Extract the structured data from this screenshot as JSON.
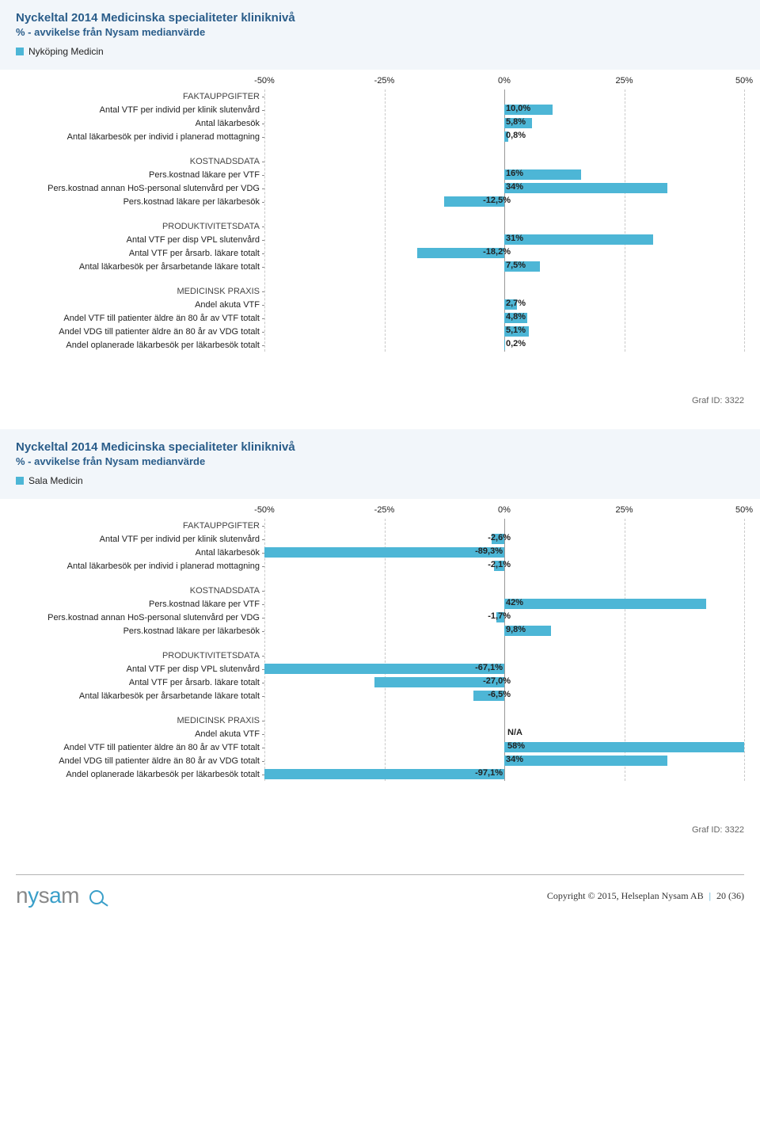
{
  "bar_color": "#4db6d6",
  "grid_color": "#c9c9c9",
  "zero_line_color": "#777777",
  "panel_bg": "#f2f6fa",
  "xlim": [
    -50,
    50
  ],
  "xticks": [
    -50,
    -25,
    0,
    25,
    50
  ],
  "xtick_labels": [
    "-50%",
    "-25%",
    "0%",
    "25%",
    "50%"
  ],
  "charts": [
    {
      "title": "Nyckeltal 2014 Medicinska specialiteter kliniknivå",
      "subtitle": "% - avvikelse från Nysam medianvärde",
      "legend": "Nyköping Medicin",
      "graf_id": "Graf ID: 3322",
      "sections": [
        {
          "header": "FAKTAUPPGIFTER",
          "rows": [
            {
              "label": "Antal VTF per individ per klinik slutenvård",
              "value": 10.0,
              "display": "10,0%"
            },
            {
              "label": "Antal läkarbesök",
              "value": 5.8,
              "display": "5,8%"
            },
            {
              "label": "Antal läkarbesök per individ i planerad mottagning",
              "value": 0.8,
              "display": "0,8%"
            }
          ]
        },
        {
          "header": "KOSTNADSDATA",
          "rows": [
            {
              "label": "Pers.kostnad läkare per VTF",
              "value": 16,
              "display": "16%"
            },
            {
              "label": "Pers.kostnad annan HoS-personal slutenvård per VDG",
              "value": 34,
              "display": "34%"
            },
            {
              "label": "Pers.kostnad läkare per läkarbesök",
              "value": -12.5,
              "display": "-12,5%"
            }
          ]
        },
        {
          "header": "PRODUKTIVITETSDATA",
          "rows": [
            {
              "label": "Antal VTF per disp VPL slutenvård",
              "value": 31,
              "display": "31%"
            },
            {
              "label": "Antal VTF per årsarb. läkare totalt",
              "value": -18.2,
              "display": "-18,2%"
            },
            {
              "label": "Antal läkarbesök per årsarbetande läkare totalt",
              "value": 7.5,
              "display": "7,5%"
            }
          ]
        },
        {
          "header": "MEDICINSK PRAXIS",
          "rows": [
            {
              "label": "Andel akuta VTF",
              "value": 2.7,
              "display": "2,7%"
            },
            {
              "label": "Andel VTF till patienter äldre än 80 år av VTF totalt",
              "value": 4.8,
              "display": "4,8%"
            },
            {
              "label": "Andel VDG till patienter äldre än 80 år av VDG totalt",
              "value": 5.1,
              "display": "5,1%"
            },
            {
              "label": "Andel oplanerade läkarbesök per läkarbesök totalt",
              "value": 0.2,
              "display": "0,2%"
            }
          ]
        }
      ]
    },
    {
      "title": "Nyckeltal 2014 Medicinska specialiteter kliniknivå",
      "subtitle": "% - avvikelse från Nysam medianvärde",
      "legend": "Sala Medicin",
      "graf_id": "Graf ID: 3322",
      "sections": [
        {
          "header": "FAKTAUPPGIFTER",
          "rows": [
            {
              "label": "Antal VTF per individ per klinik slutenvård",
              "value": -2.6,
              "display": "-2,6%"
            },
            {
              "label": "Antal läkarbesök",
              "value": -89.3,
              "display": "-89,3%",
              "clip_neg": true
            },
            {
              "label": "Antal läkarbesök per individ i planerad mottagning",
              "value": -2.1,
              "display": "-2,1%"
            }
          ]
        },
        {
          "header": "KOSTNADSDATA",
          "rows": [
            {
              "label": "Pers.kostnad läkare per VTF",
              "value": 42,
              "display": "42%"
            },
            {
              "label": "Pers.kostnad annan HoS-personal slutenvård per VDG",
              "value": -1.7,
              "display": "-1,7%"
            },
            {
              "label": "Pers.kostnad läkare per läkarbesök",
              "value": 9.8,
              "display": "9,8%"
            }
          ]
        },
        {
          "header": "PRODUKTIVITETSDATA",
          "rows": [
            {
              "label": "Antal VTF per disp VPL slutenvård",
              "value": -67.1,
              "display": "-67,1%",
              "clip_neg": true
            },
            {
              "label": "Antal VTF per årsarb. läkare totalt",
              "value": -27.0,
              "display": "-27,0%"
            },
            {
              "label": "Antal läkarbesök per årsarbetande läkare totalt",
              "value": -6.5,
              "display": "-6,5%"
            }
          ]
        },
        {
          "header": "MEDICINSK PRAXIS",
          "rows": [
            {
              "label": "Andel akuta VTF",
              "value": null,
              "display": "N/A"
            },
            {
              "label": "Andel VTF till patienter äldre än 80 år av VTF totalt",
              "value": 58,
              "display": "58%",
              "clip_pos": true
            },
            {
              "label": "Andel VDG till patienter äldre än 80 år av VDG totalt",
              "value": 34,
              "display": "34%"
            },
            {
              "label": "Andel oplanerade läkarbesök per läkarbesök totalt",
              "value": -97.1,
              "display": "-97,1%",
              "clip_neg": true
            }
          ]
        }
      ]
    }
  ],
  "footer": {
    "copyright": "Copyright © 2015, Helseplan Nysam AB",
    "page": "20 (36)"
  }
}
